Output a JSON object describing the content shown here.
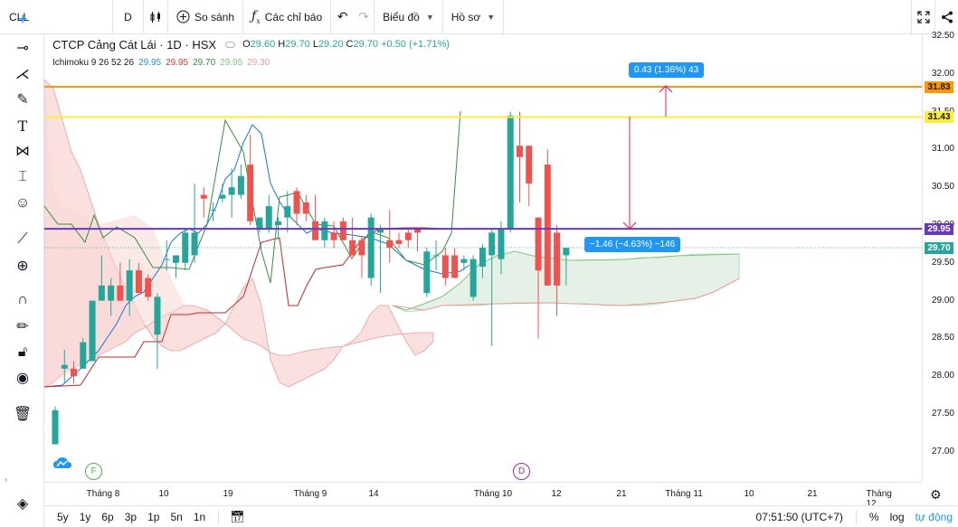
{
  "toolbar": {
    "symbol": "CLL",
    "interval": "D",
    "compare_label": "So sánh",
    "indicators_label": "Các chỉ báo",
    "chart_type_label": "Biểu đồ",
    "profile_label": "Hồ sơ"
  },
  "legend": {
    "title": "CTCP Cảng Cát Lái · 1D · HSX",
    "o_key": "O",
    "o": "29.60",
    "h_key": "H",
    "h": "29.70",
    "l_key": "L",
    "l": "29.20",
    "c_key": "C",
    "c": "29.70",
    "change": "+0.50 (+1.71%)",
    "ichimoku_name": "Ichimoku 9 26 52 26",
    "ichimoku_values": [
      "29.95",
      "29.95",
      "29.70",
      "29.95",
      "29.30"
    ],
    "ichimoku_colors": [
      "#2196f3",
      "#e53935",
      "#388e3c",
      "#81c784",
      "#ef9a9a"
    ]
  },
  "price_axis": {
    "ticks": [
      "32.50",
      "32.00",
      "31.50",
      "31.00",
      "30.50",
      "30.00",
      "29.50",
      "29.00",
      "28.50",
      "28.00",
      "27.50",
      "27.00"
    ],
    "badges": [
      {
        "value": "31.83",
        "bg": "#ff9800",
        "color": "#131722"
      },
      {
        "value": "31.43",
        "bg": "#ffeb3b",
        "color": "#131722"
      },
      {
        "value": "29.95",
        "bg": "#673ab7",
        "color": "#ffffff"
      },
      {
        "value": "29.70",
        "bg": "#26a69a",
        "color": "#ffffff"
      }
    ]
  },
  "time_axis": {
    "labels": [
      "Tháng 8",
      "10",
      "19",
      "Tháng 9",
      "14",
      "Tháng 10",
      "12",
      "21",
      "Tháng 11",
      "10",
      "21",
      "Tháng 12"
    ]
  },
  "drawings": {
    "measure_up": "0.43 (1.36%) 43",
    "measure_down": "−1.46 (−4.63%) −146",
    "hlines": [
      {
        "price": 31.83,
        "color": "#ff9800"
      },
      {
        "price": 31.43,
        "color": "#ffeb3b"
      },
      {
        "price": 29.95,
        "color": "#673ab7"
      }
    ]
  },
  "events": {
    "f_label": "F",
    "d_label": "D"
  },
  "bottombar": {
    "ranges": [
      "5y",
      "1y",
      "6p",
      "3p",
      "1p",
      "5n",
      "1n"
    ],
    "time": "07:51:50 (UTC+7)",
    "percent": "%",
    "log": "log",
    "auto": "tự động"
  },
  "chart_data": {
    "type": "candlestick",
    "ylim": [
      26.8,
      32.55
    ],
    "candles": [
      {
        "o": 27.1,
        "h": 27.6,
        "l": 27.1,
        "c": 27.55
      },
      {
        "o": 28.1,
        "h": 28.35,
        "l": 27.9,
        "c": 28.15
      },
      {
        "o": 28.1,
        "h": 28.2,
        "l": 27.9,
        "c": 28.0
      },
      {
        "o": 28.1,
        "h": 28.5,
        "l": 28.1,
        "c": 28.45
      },
      {
        "o": 28.2,
        "h": 29.0,
        "l": 28.2,
        "c": 29.0
      },
      {
        "o": 29.0,
        "h": 29.6,
        "l": 29.0,
        "c": 29.2
      },
      {
        "o": 29.0,
        "h": 29.3,
        "l": 28.8,
        "c": 29.2
      },
      {
        "o": 29.2,
        "h": 29.5,
        "l": 29.0,
        "c": 29.0
      },
      {
        "o": 29.0,
        "h": 29.55,
        "l": 28.8,
        "c": 29.4
      },
      {
        "o": 29.4,
        "h": 29.5,
        "l": 29.1,
        "c": 29.1
      },
      {
        "o": 29.3,
        "h": 29.35,
        "l": 29.0,
        "c": 29.05
      },
      {
        "o": 28.55,
        "h": 29.1,
        "l": 28.1,
        "c": 29.05
      },
      {
        "o": 29.55,
        "h": 29.8,
        "l": 29.4,
        "c": 29.55
      },
      {
        "o": 29.5,
        "h": 29.6,
        "l": 29.3,
        "c": 29.6
      },
      {
        "o": 29.5,
        "h": 29.95,
        "l": 29.4,
        "c": 29.9
      },
      {
        "o": 29.6,
        "h": 30.55,
        "l": 29.5,
        "c": 29.9
      },
      {
        "o": 30.4,
        "h": 30.5,
        "l": 30.1,
        "c": 30.35
      },
      {
        "o": 30.2,
        "h": 30.3,
        "l": 30.05,
        "c": 30.2
      },
      {
        "o": 30.35,
        "h": 30.55,
        "l": 30.3,
        "c": 30.4
      },
      {
        "o": 30.4,
        "h": 30.75,
        "l": 30.1,
        "c": 30.5
      },
      {
        "o": 30.4,
        "h": 30.8,
        "l": 30.35,
        "c": 30.65
      },
      {
        "o": 30.8,
        "h": 31.2,
        "l": 30.0,
        "c": 30.05
      },
      {
        "o": 29.95,
        "h": 30.05,
        "l": 29.9,
        "c": 30.1
      },
      {
        "o": 29.95,
        "h": 30.4,
        "l": 29.9,
        "c": 30.25
      },
      {
        "o": 30.0,
        "h": 30.1,
        "l": 29.8,
        "c": 30.05
      },
      {
        "o": 30.1,
        "h": 30.45,
        "l": 29.9,
        "c": 30.25
      },
      {
        "o": 30.45,
        "h": 30.5,
        "l": 30.0,
        "c": 30.15
      },
      {
        "o": 30.3,
        "h": 30.4,
        "l": 30.05,
        "c": 30.15
      },
      {
        "o": 30.05,
        "h": 30.4,
        "l": 29.8,
        "c": 29.8
      },
      {
        "o": 29.8,
        "h": 30.1,
        "l": 29.7,
        "c": 30.05
      },
      {
        "o": 29.9,
        "h": 30.05,
        "l": 29.7,
        "c": 29.8
      },
      {
        "o": 30.05,
        "h": 30.1,
        "l": 29.8,
        "c": 29.8
      },
      {
        "o": 29.8,
        "h": 30.1,
        "l": 29.6,
        "c": 29.6
      },
      {
        "o": 29.8,
        "h": 29.85,
        "l": 29.3,
        "c": 29.6
      },
      {
        "o": 29.3,
        "h": 30.15,
        "l": 29.2,
        "c": 30.1
      },
      {
        "o": 29.9,
        "h": 30.0,
        "l": 29.1,
        "c": 29.95
      },
      {
        "o": 29.8,
        "h": 30.2,
        "l": 29.5,
        "c": 29.7
      },
      {
        "o": 29.8,
        "h": 29.9,
        "l": 29.7,
        "c": 29.75
      },
      {
        "o": 29.9,
        "h": 29.95,
        "l": 29.7,
        "c": 29.8
      },
      {
        "o": 29.95,
        "h": 29.95,
        "l": 29.65,
        "c": 29.9
      },
      {
        "o": 29.1,
        "h": 29.7,
        "l": 29.05,
        "c": 29.65
      },
      {
        "o": 29.6,
        "h": 29.8,
        "l": 29.4,
        "c": 29.6
      },
      {
        "o": 29.6,
        "h": 29.7,
        "l": 29.2,
        "c": 29.3
      },
      {
        "o": 29.6,
        "h": 29.7,
        "l": 29.3,
        "c": 29.3
      },
      {
        "o": 29.5,
        "h": 29.6,
        "l": 29.4,
        "c": 29.55
      },
      {
        "o": 29.05,
        "h": 29.6,
        "l": 29.0,
        "c": 29.55
      },
      {
        "o": 29.45,
        "h": 29.75,
        "l": 29.3,
        "c": 29.7
      },
      {
        "o": 29.6,
        "h": 29.95,
        "l": 28.4,
        "c": 29.9
      },
      {
        "o": 29.55,
        "h": 30.05,
        "l": 29.35,
        "c": 29.95
      },
      {
        "o": 29.95,
        "h": 31.5,
        "l": 29.9,
        "c": 31.45
      },
      {
        "o": 31.05,
        "h": 31.5,
        "l": 30.3,
        "c": 30.9
      },
      {
        "o": 31.05,
        "h": 31.05,
        "l": 30.25,
        "c": 30.55
      },
      {
        "o": 30.1,
        "h": 30.1,
        "l": 28.5,
        "c": 29.4
      },
      {
        "o": 30.8,
        "h": 31.0,
        "l": 29.2,
        "c": 29.2
      },
      {
        "o": 29.9,
        "h": 30.0,
        "l": 28.8,
        "c": 29.2
      },
      {
        "o": 29.6,
        "h": 29.7,
        "l": 29.2,
        "c": 29.7
      }
    ]
  }
}
